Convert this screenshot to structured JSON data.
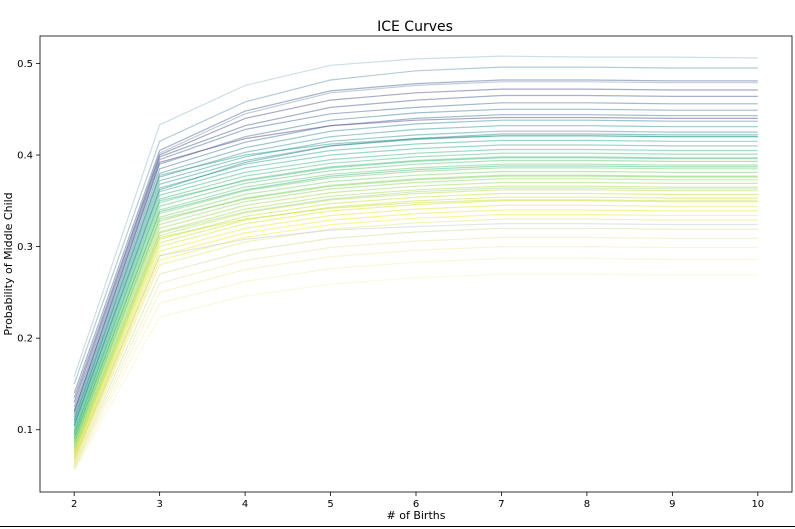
{
  "chart_data": {
    "type": "line",
    "title": "ICE Curves",
    "xlabel": "# of Births",
    "ylabel": "Probability of Middle Child",
    "x": [
      2,
      3,
      4,
      5,
      6,
      7,
      8,
      9,
      10
    ],
    "xticks": [
      "2",
      "3",
      "4",
      "5",
      "6",
      "7",
      "8",
      "9",
      "10"
    ],
    "yticks": [
      "0.1",
      "0.2",
      "0.3",
      "0.4",
      "0.5"
    ],
    "ytick_values": [
      0.1,
      0.2,
      0.3,
      0.4,
      0.5
    ],
    "xlim": [
      1.6,
      10.4
    ],
    "ylim": [
      0.032,
      0.53
    ],
    "grid": false,
    "legend": "none",
    "colormap": "viridis",
    "line_alpha": 0.15,
    "series": [
      {
        "values": [
          0.158,
          0.433,
          0.476,
          0.498,
          0.505,
          0.508,
          0.507,
          0.507,
          0.506
        ],
        "color": "#8fb8c4"
      },
      {
        "values": [
          0.15,
          0.415,
          0.458,
          0.482,
          0.492,
          0.496,
          0.496,
          0.495,
          0.495
        ],
        "color": "#5e8ba8"
      },
      {
        "values": [
          0.14,
          0.405,
          0.448,
          0.47,
          0.478,
          0.482,
          0.482,
          0.481,
          0.481
        ],
        "color": "#3b5b8c"
      },
      {
        "values": [
          0.135,
          0.4,
          0.44,
          0.46,
          0.468,
          0.472,
          0.472,
          0.471,
          0.471
        ],
        "color": "#414487"
      },
      {
        "values": [
          0.13,
          0.398,
          0.432,
          0.452,
          0.46,
          0.465,
          0.465,
          0.464,
          0.464
        ],
        "color": "#3b528b"
      },
      {
        "values": [
          0.125,
          0.395,
          0.428,
          0.445,
          0.452,
          0.457,
          0.457,
          0.456,
          0.456
        ],
        "color": "#355f8d"
      },
      {
        "values": [
          0.12,
          0.39,
          0.42,
          0.438,
          0.446,
          0.45,
          0.45,
          0.449,
          0.449
        ],
        "color": "#2c728e"
      },
      {
        "values": [
          0.117,
          0.385,
          0.414,
          0.432,
          0.44,
          0.444,
          0.444,
          0.443,
          0.443
        ],
        "color": "#31688e"
      },
      {
        "values": [
          0.114,
          0.38,
          0.408,
          0.426,
          0.434,
          0.438,
          0.438,
          0.437,
          0.437
        ],
        "color": "#287d8e"
      },
      {
        "values": [
          0.111,
          0.376,
          0.403,
          0.42,
          0.428,
          0.432,
          0.432,
          0.431,
          0.431
        ],
        "color": "#238a8d"
      },
      {
        "values": [
          0.108,
          0.372,
          0.398,
          0.415,
          0.422,
          0.426,
          0.426,
          0.425,
          0.425
        ],
        "color": "#21918c"
      },
      {
        "values": [
          0.105,
          0.368,
          0.394,
          0.41,
          0.417,
          0.421,
          0.421,
          0.42,
          0.42
        ],
        "color": "#1f988b"
      },
      {
        "values": [
          0.103,
          0.364,
          0.39,
          0.405,
          0.412,
          0.416,
          0.416,
          0.415,
          0.415
        ],
        "color": "#20a386"
      },
      {
        "values": [
          0.1,
          0.36,
          0.386,
          0.4,
          0.407,
          0.411,
          0.411,
          0.41,
          0.41
        ],
        "color": "#22a884"
      },
      {
        "values": [
          0.098,
          0.356,
          0.381,
          0.395,
          0.402,
          0.406,
          0.406,
          0.405,
          0.405
        ],
        "color": "#2db27d"
      },
      {
        "values": [
          0.096,
          0.352,
          0.377,
          0.391,
          0.398,
          0.402,
          0.402,
          0.401,
          0.401
        ],
        "color": "#35b779"
      },
      {
        "values": [
          0.094,
          0.348,
          0.373,
          0.387,
          0.394,
          0.398,
          0.398,
          0.397,
          0.397
        ],
        "color": "#3fbc73"
      },
      {
        "values": [
          0.092,
          0.344,
          0.369,
          0.383,
          0.39,
          0.394,
          0.394,
          0.393,
          0.393
        ],
        "color": "#4ac16d"
      },
      {
        "values": [
          0.09,
          0.34,
          0.365,
          0.379,
          0.386,
          0.39,
          0.39,
          0.389,
          0.389
        ],
        "color": "#55c667"
      },
      {
        "values": [
          0.088,
          0.336,
          0.361,
          0.375,
          0.382,
          0.386,
          0.386,
          0.385,
          0.385
        ],
        "color": "#63cb5f"
      },
      {
        "values": [
          0.086,
          0.332,
          0.357,
          0.371,
          0.378,
          0.382,
          0.382,
          0.381,
          0.381
        ],
        "color": "#6ece58"
      },
      {
        "values": [
          0.084,
          0.328,
          0.353,
          0.367,
          0.374,
          0.378,
          0.378,
          0.377,
          0.377
        ],
        "color": "#7ad151"
      },
      {
        "values": [
          0.082,
          0.324,
          0.349,
          0.363,
          0.37,
          0.374,
          0.374,
          0.373,
          0.373
        ],
        "color": "#86d549"
      },
      {
        "values": [
          0.08,
          0.32,
          0.345,
          0.359,
          0.366,
          0.37,
          0.37,
          0.369,
          0.369
        ],
        "color": "#95d840"
      },
      {
        "values": [
          0.078,
          0.316,
          0.341,
          0.355,
          0.362,
          0.366,
          0.366,
          0.365,
          0.365
        ],
        "color": "#a2da37"
      },
      {
        "values": [
          0.076,
          0.312,
          0.337,
          0.351,
          0.358,
          0.362,
          0.362,
          0.361,
          0.361
        ],
        "color": "#b0dd2f"
      },
      {
        "values": [
          0.074,
          0.308,
          0.333,
          0.347,
          0.354,
          0.358,
          0.358,
          0.357,
          0.357
        ],
        "color": "#bddf26"
      },
      {
        "values": [
          0.072,
          0.304,
          0.329,
          0.343,
          0.35,
          0.354,
          0.354,
          0.353,
          0.353
        ],
        "color": "#cae11f"
      },
      {
        "values": [
          0.07,
          0.3,
          0.325,
          0.339,
          0.346,
          0.35,
          0.35,
          0.349,
          0.349
        ],
        "color": "#d8e219"
      },
      {
        "values": [
          0.068,
          0.295,
          0.32,
          0.334,
          0.341,
          0.345,
          0.345,
          0.344,
          0.344
        ],
        "color": "#e5e419"
      },
      {
        "values": [
          0.066,
          0.29,
          0.315,
          0.329,
          0.336,
          0.34,
          0.34,
          0.339,
          0.339
        ],
        "color": "#f1e51d"
      },
      {
        "values": [
          0.064,
          0.285,
          0.31,
          0.324,
          0.331,
          0.335,
          0.335,
          0.334,
          0.334
        ],
        "color": "#fde725"
      },
      {
        "values": [
          0.062,
          0.28,
          0.305,
          0.319,
          0.326,
          0.33,
          0.33,
          0.329,
          0.329
        ],
        "color": "#dfe66a"
      },
      {
        "values": [
          0.06,
          0.27,
          0.295,
          0.309,
          0.316,
          0.32,
          0.32,
          0.319,
          0.319
        ],
        "color": "#c8dd8a"
      },
      {
        "values": [
          0.058,
          0.26,
          0.285,
          0.299,
          0.306,
          0.31,
          0.31,
          0.309,
          0.309
        ],
        "color": "#e8e59a"
      },
      {
        "values": [
          0.057,
          0.25,
          0.275,
          0.289,
          0.296,
          0.3,
          0.3,
          0.299,
          0.299
        ],
        "color": "#f2ec9c"
      },
      {
        "values": [
          0.056,
          0.238,
          0.262,
          0.276,
          0.283,
          0.287,
          0.287,
          0.286,
          0.286
        ],
        "color": "#f4efa8"
      },
      {
        "values": [
          0.055,
          0.223,
          0.246,
          0.259,
          0.266,
          0.27,
          0.27,
          0.269,
          0.269
        ],
        "color": "#f6f2bb"
      },
      {
        "values": [
          0.12,
          0.392,
          0.418,
          0.432,
          0.438,
          0.441,
          0.441,
          0.44,
          0.44
        ],
        "color": "#46337e"
      },
      {
        "values": [
          0.11,
          0.378,
          0.4,
          0.412,
          0.418,
          0.421,
          0.421,
          0.42,
          0.42
        ],
        "color": "#1e9b8a"
      },
      {
        "values": [
          0.095,
          0.35,
          0.372,
          0.386,
          0.393,
          0.397,
          0.397,
          0.396,
          0.396
        ],
        "color": "#3aba76"
      },
      {
        "values": [
          0.085,
          0.33,
          0.352,
          0.366,
          0.373,
          0.377,
          0.377,
          0.376,
          0.376
        ],
        "color": "#75d054"
      },
      {
        "values": [
          0.075,
          0.31,
          0.33,
          0.342,
          0.348,
          0.351,
          0.351,
          0.35,
          0.35
        ],
        "color": "#c2df23"
      },
      {
        "values": [
          0.068,
          0.29,
          0.308,
          0.318,
          0.322,
          0.325,
          0.325,
          0.324,
          0.324
        ],
        "color": "#b8c9d6"
      },
      {
        "values": [
          0.08,
          0.315,
          0.338,
          0.352,
          0.36,
          0.364,
          0.364,
          0.363,
          0.363
        ],
        "color": "#9fd39a"
      },
      {
        "values": [
          0.13,
          0.402,
          0.445,
          0.468,
          0.476,
          0.48,
          0.48,
          0.479,
          0.479
        ],
        "color": "#7d8fae"
      },
      {
        "values": [
          0.105,
          0.362,
          0.392,
          0.41,
          0.418,
          0.423,
          0.423,
          0.422,
          0.422
        ],
        "color": "#2a788e"
      },
      {
        "values": [
          0.09,
          0.338,
          0.362,
          0.377,
          0.384,
          0.388,
          0.388,
          0.387,
          0.387
        ],
        "color": "#2fb47c"
      }
    ]
  }
}
